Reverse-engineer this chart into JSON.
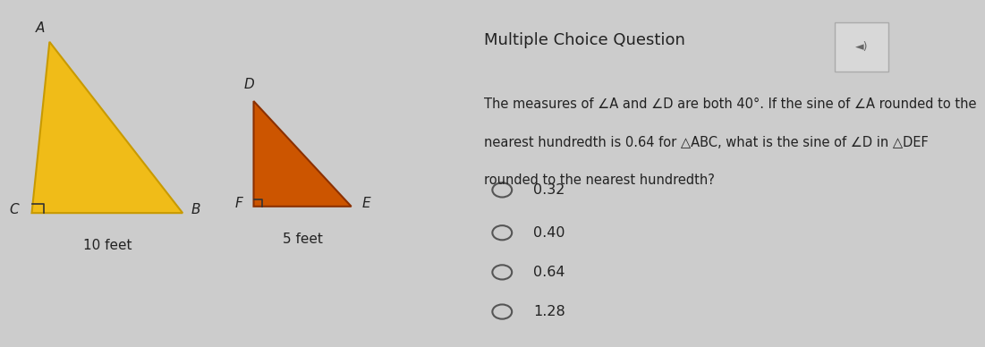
{
  "bg_color": "#cccccc",
  "left_bg": "#c8c8c8",
  "right_bg": "#d4d4d4",
  "tri_abc": {
    "A": [
      0.08,
      0.9
    ],
    "B": [
      0.38,
      0.38
    ],
    "C": [
      0.04,
      0.38
    ],
    "color": "#f0bc18",
    "edge_color": "#c89a00",
    "label_A": "A",
    "label_B": "B",
    "label_C": "C",
    "base_label": "10 feet"
  },
  "tri_def": {
    "D": [
      0.58,
      0.72
    ],
    "E": [
      0.76,
      0.4
    ],
    "F": [
      0.54,
      0.4
    ],
    "color": "#cc5500",
    "edge_color": "#8B3000",
    "label_D": "D",
    "label_E": "E",
    "label_F": "F",
    "base_label": "5 feet"
  },
  "mcq_title": "Multiple Choice Question",
  "q_line1": "The measures of ∠A and ∠D are both 40°. If the sine of ∠A rounded to the",
  "q_line2": "nearest hundredth is 0.64 for △ABC, what is the sine of ∠D in △DEF",
  "q_line3": "rounded to the nearest hundredth?",
  "choices": [
    "0.32",
    "0.40",
    "0.64",
    "1.28"
  ],
  "title_fontsize": 13,
  "question_fontsize": 10.5,
  "choice_fontsize": 11.5,
  "text_color": "#222222",
  "circle_color": "#555555"
}
